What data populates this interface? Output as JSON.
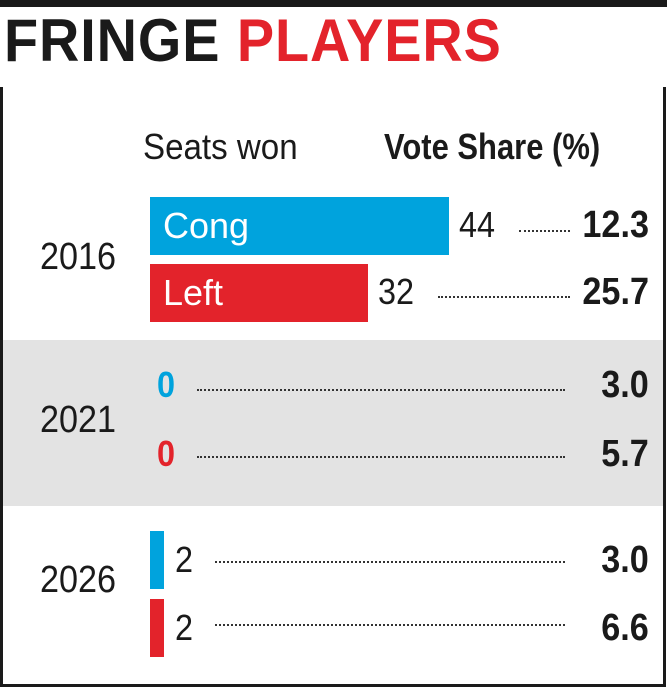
{
  "title": {
    "part1": "FRINGE",
    "part2": "PLAYERS"
  },
  "headers": {
    "seats": "Seats won",
    "vote": "Vote Share (%)"
  },
  "colors": {
    "cong": "#00a3dd",
    "left": "#e3232b",
    "band": "#e3e3e3"
  },
  "chart_data": {
    "type": "bar",
    "title": "FRINGE PLAYERS",
    "categories": [
      "2016",
      "2021",
      "2026"
    ],
    "series": [
      {
        "name": "Cong",
        "seats": [
          44,
          0,
          2
        ],
        "vote_share": [
          12.3,
          3.0,
          3.0
        ]
      },
      {
        "name": "Left",
        "seats": [
          32,
          0,
          2
        ],
        "vote_share": [
          25.7,
          5.7,
          6.6
        ]
      }
    ]
  },
  "rows": [
    {
      "year": "2016",
      "cong": {
        "label": "Cong",
        "seats": "44",
        "vote": "12.3"
      },
      "left": {
        "label": "Left",
        "seats": "32",
        "vote": "25.7"
      }
    },
    {
      "year": "2021",
      "cong": {
        "seats": "0",
        "vote": "3.0"
      },
      "left": {
        "seats": "0",
        "vote": "5.7"
      }
    },
    {
      "year": "2026",
      "cong": {
        "seats": "2",
        "vote": "3.0"
      },
      "left": {
        "seats": "2",
        "vote": "6.6"
      }
    }
  ]
}
